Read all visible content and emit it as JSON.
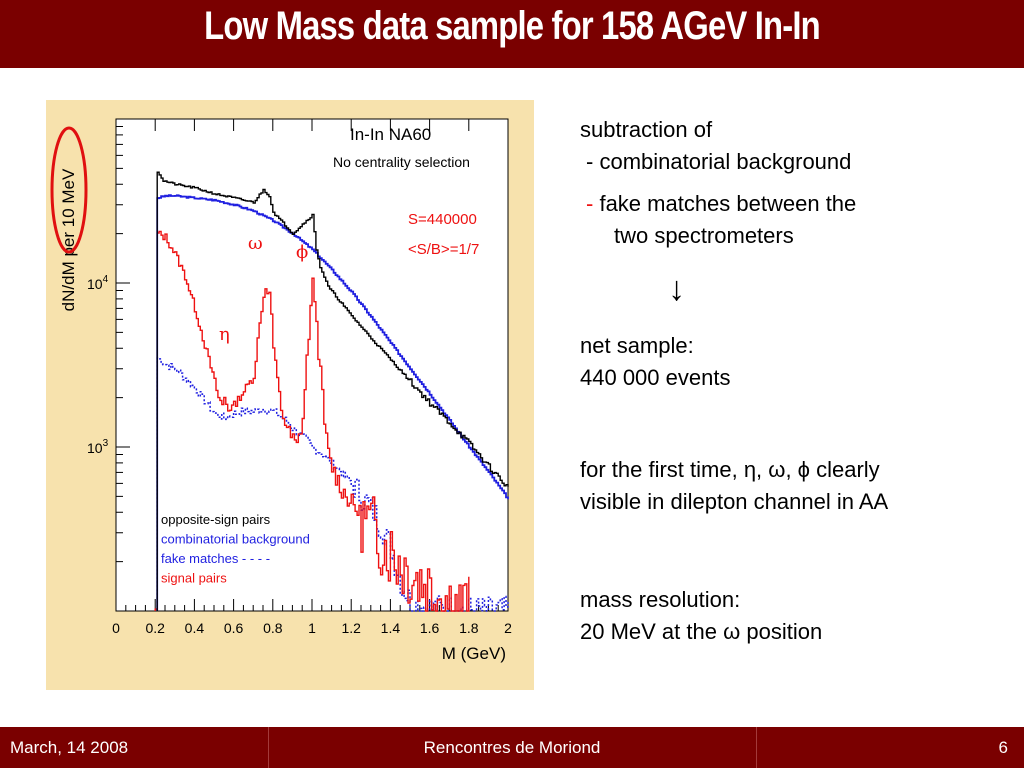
{
  "slide": {
    "title": "Low Mass data sample for 158 AGeV In-In",
    "footer": {
      "date": "March, 14 2008",
      "conference": "Rencontres de Moriond",
      "page": "6"
    }
  },
  "notes": {
    "intro": "subtraction of",
    "item1_bullet": "-",
    "item1": "combinatorial background",
    "item2_bullet": "-",
    "item2_line1": "fake matches between the",
    "item2_line2": "two spectrometers",
    "arrow": "↓",
    "net_line1": "net sample:",
    "net_line2": "440 000 events",
    "first_line1": "for the first time, η, ω, ϕ clearly",
    "first_line2": "visible in dilepton channel in AA",
    "res_line1": "mass resolution:",
    "res_line2_prefix": "20 MeV at the ",
    "res_line2_symbol": "ω",
    "res_line2_suffix": " position"
  },
  "colors": {
    "title_bar": "#7a0000",
    "plot_frame": "#f7e2ad",
    "opposite_sign": "#000000",
    "combinatorial": "#1f1fe0",
    "fake": "#1f1fe0",
    "signal": "#ee1111",
    "highlight_ring": "#e01010"
  },
  "chart_data": {
    "type": "line",
    "log_y": true,
    "xlabel": "M (GeV)",
    "ylabel": "dN/dM per 10 MeV",
    "xlim": [
      0,
      2
    ],
    "ylim": [
      100,
      100000
    ],
    "x_ticks": [
      "0",
      "0.2",
      "0.4",
      "0.6",
      "0.8",
      "1",
      "1.2",
      "1.4",
      "1.6",
      "1.8",
      "2"
    ],
    "y_ticks": [
      {
        "value": 1000,
        "base": "10",
        "exp": "3"
      },
      {
        "value": 10000,
        "base": "10",
        "exp": "4"
      }
    ],
    "annotations": {
      "experiment": "In-In  NA60",
      "centrality": "No centrality selection",
      "signal_count": "S=440000",
      "signal_ratio": "<S/B>=1/7",
      "peak_eta": "η",
      "peak_omega": "ω",
      "peak_phi": "ϕ"
    },
    "legend": {
      "placement": "bottom-left",
      "entries": [
        {
          "label": "opposite-sign pairs",
          "color": "#000000"
        },
        {
          "label": "combinatorial background",
          "color": "#1f1fe0"
        },
        {
          "label": "fake matches - - - -",
          "color": "#1f1fe0"
        },
        {
          "label": "signal pairs",
          "color": "#ee1111"
        }
      ]
    },
    "series": [
      {
        "key": "opposite",
        "x": [
          0.21,
          0.24,
          0.3,
          0.4,
          0.5,
          0.6,
          0.7,
          0.75,
          0.78,
          0.8,
          0.9,
          1.0,
          1.02,
          1.04,
          1.08,
          1.2,
          1.3,
          1.4,
          1.5,
          1.6,
          1.7,
          1.8,
          1.9,
          2.0
        ],
        "y": [
          48000,
          42000,
          40000,
          38000,
          35000,
          33000,
          31000,
          37000,
          34000,
          27000,
          20000,
          26000,
          16000,
          12500,
          9500,
          6300,
          4600,
          3400,
          2500,
          1850,
          1400,
          1050,
          760,
          560
        ]
      },
      {
        "key": "combinatorial",
        "x": [
          0.21,
          0.25,
          0.3,
          0.4,
          0.5,
          0.6,
          0.7,
          0.8,
          0.9,
          1.0,
          1.1,
          1.2,
          1.3,
          1.4,
          1.5,
          1.6,
          1.7,
          1.8,
          1.9,
          2.0
        ],
        "y": [
          33000,
          34000,
          34000,
          33000,
          32000,
          30000,
          27500,
          24000,
          20000,
          16000,
          12000,
          8800,
          6200,
          4300,
          3000,
          2100,
          1450,
          1000,
          700,
          480
        ]
      },
      {
        "key": "fake",
        "x": [
          0.21,
          0.25,
          0.3,
          0.4,
          0.5,
          0.55,
          0.6,
          0.65,
          0.7,
          0.75,
          0.8,
          0.85,
          0.9,
          0.95,
          1.0,
          1.05,
          1.1,
          1.2,
          1.3,
          1.35,
          1.4,
          1.45,
          1.5,
          1.6,
          1.75,
          1.9,
          2.0
        ],
        "y": [
          3500,
          3200,
          3000,
          2300,
          1600,
          1500,
          1600,
          1650,
          1650,
          1700,
          1650,
          1500,
          1300,
          1150,
          1000,
          900,
          800,
          600,
          420,
          330,
          240,
          150,
          112,
          104,
          101,
          100,
          100
        ]
      },
      {
        "key": "signal",
        "x": [
          0.2,
          0.21,
          0.25,
          0.3,
          0.35,
          0.4,
          0.45,
          0.5,
          0.52,
          0.54,
          0.55,
          0.57,
          0.6,
          0.65,
          0.7,
          0.72,
          0.74,
          0.76,
          0.78,
          0.79,
          0.8,
          0.82,
          0.84,
          0.88,
          0.9,
          0.92,
          0.95,
          0.98,
          1.0,
          1.01,
          1.02,
          1.04,
          1.06,
          1.08,
          1.1,
          1.15,
          1.2,
          1.3,
          1.4,
          1.5,
          1.6,
          1.7,
          1.75,
          1.8
        ],
        "y": [
          100,
          20000,
          19000,
          15000,
          11000,
          7000,
          4200,
          2500,
          2000,
          1800,
          2000,
          1700,
          1800,
          2200,
          2700,
          4500,
          7000,
          9500,
          8500,
          6500,
          4000,
          2600,
          1700,
          1200,
          1100,
          1000,
          1500,
          5000,
          9500,
          8500,
          5500,
          2800,
          1400,
          900,
          750,
          550,
          450,
          320,
          230,
          170,
          140,
          115,
          105,
          100
        ]
      }
    ]
  }
}
